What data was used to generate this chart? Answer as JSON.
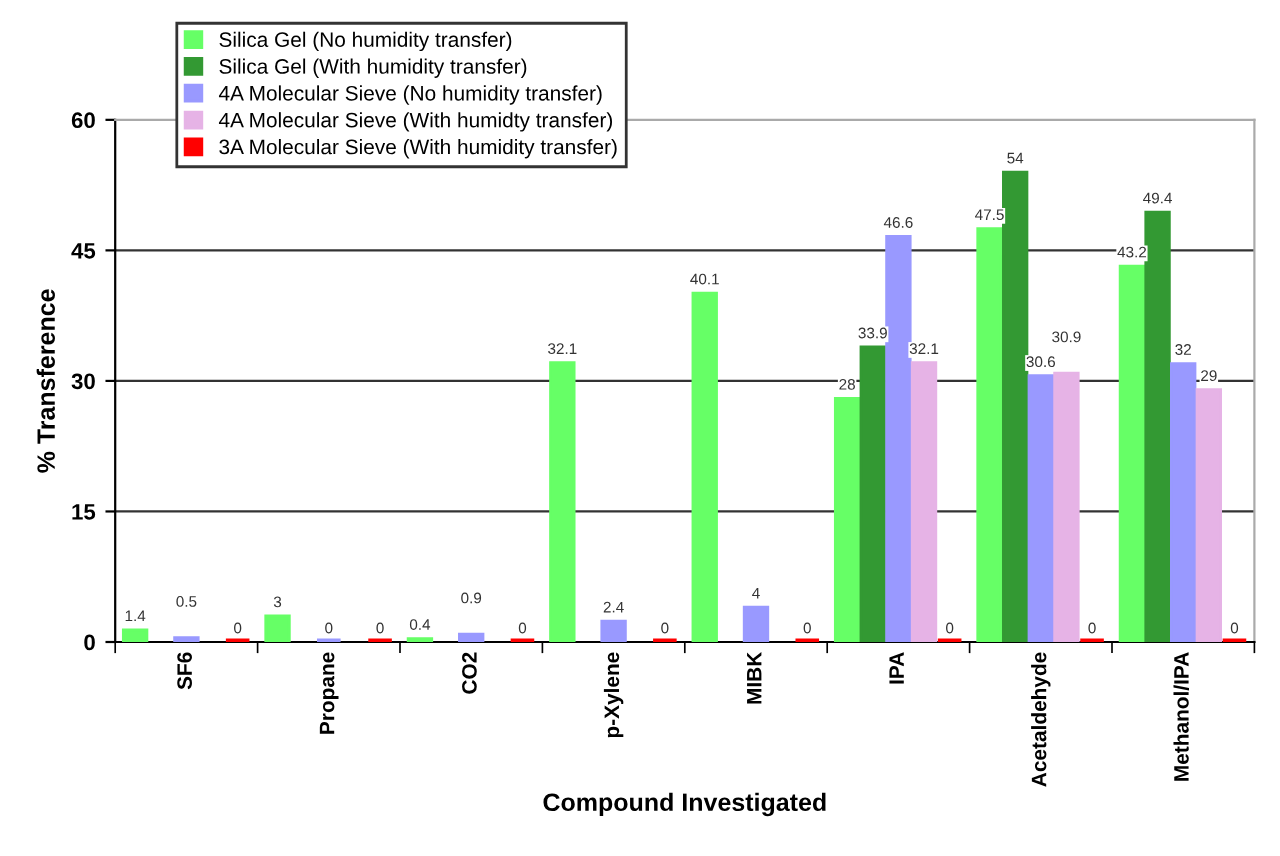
{
  "chart_data": {
    "type": "bar",
    "xlabel": "Compound Investigated",
    "ylabel": "% Transference",
    "categories": [
      "SF6",
      "Propane",
      "CO2",
      "p-Xylene",
      "MIBK",
      "IPA",
      "Acetaldehyde",
      "Methanol/IPA"
    ],
    "series": [
      {
        "name": "Silica Gel (No humidity transfer)",
        "color": "#66ff66",
        "values": [
          1.4,
          3,
          0.4,
          32.1,
          40.1,
          28,
          47.5,
          43.2
        ]
      },
      {
        "name": "Silica Gel (With humidity transfer)",
        "color": "#339933",
        "values": [
          null,
          null,
          null,
          null,
          null,
          33.9,
          54,
          49.4
        ]
      },
      {
        "name": "4A Molecular Sieve (No humidity transfer)",
        "color": "#9999ff",
        "values": [
          0.5,
          0,
          0.9,
          2.4,
          4,
          46.6,
          30.6,
          32
        ]
      },
      {
        "name": "4A Molecular Sieve (With humidty transfer)",
        "color": "#e6b3e6",
        "values": [
          null,
          null,
          null,
          null,
          null,
          32.1,
          30.9,
          29
        ]
      },
      {
        "name": "3A Molecular Sieve (With humidity transfer)",
        "color": "#ff0000",
        "values": [
          0,
          0,
          0,
          0,
          0,
          0,
          0,
          0
        ]
      }
    ],
    "ylim": [
      0,
      60
    ],
    "yticks": [
      0,
      15,
      30,
      45,
      60
    ],
    "grid": "y",
    "legend": "top left",
    "data_labels": true
  }
}
